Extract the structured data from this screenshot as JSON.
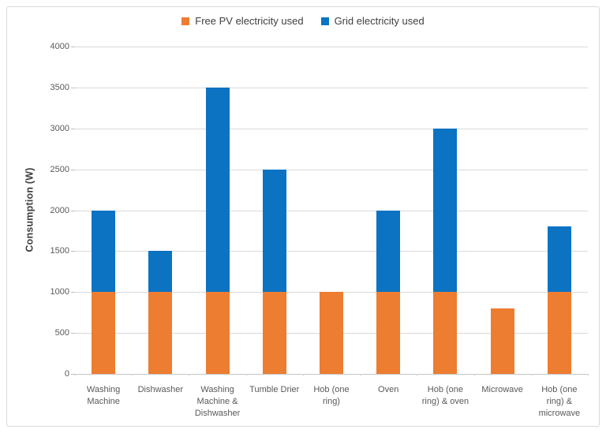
{
  "chart_data": {
    "type": "bar",
    "stacked": true,
    "title": "",
    "xlabel": "",
    "ylabel": "Consumption (W)",
    "ylim": [
      0,
      4000
    ],
    "ytick_step": 500,
    "yticks": [
      0,
      500,
      1000,
      1500,
      2000,
      2500,
      3000,
      3500,
      4000
    ],
    "grid": true,
    "legend_position": "top-center",
    "categories": [
      "Washing Machine",
      "Dishwasher",
      "Washing Machine & Dishwasher",
      "Tumble Drier",
      "Hob (one ring)",
      "Oven",
      "Hob (one ring) & oven",
      "Microwave",
      "Hob (one ring) & microwave"
    ],
    "series": [
      {
        "name": "Free PV electricity used",
        "color": "#ED7D31",
        "values": [
          1000,
          1000,
          1000,
          1000,
          1000,
          1000,
          1000,
          800,
          1000
        ]
      },
      {
        "name": "Grid electricity used",
        "color": "#0B73C2",
        "values": [
          1000,
          500,
          2500,
          1500,
          0,
          1000,
          2000,
          0,
          800
        ]
      }
    ]
  },
  "colors": {
    "free_pv_orange": "#ED7D31",
    "grid_blue": "#0B73C2",
    "gridline": "#D9D9D9",
    "axis_line": "#C6C6C6",
    "tick_label_gray": "#595959",
    "legend_text": "#404040",
    "frame_border": "#D9D9D9",
    "background": "#FFFFFF"
  }
}
